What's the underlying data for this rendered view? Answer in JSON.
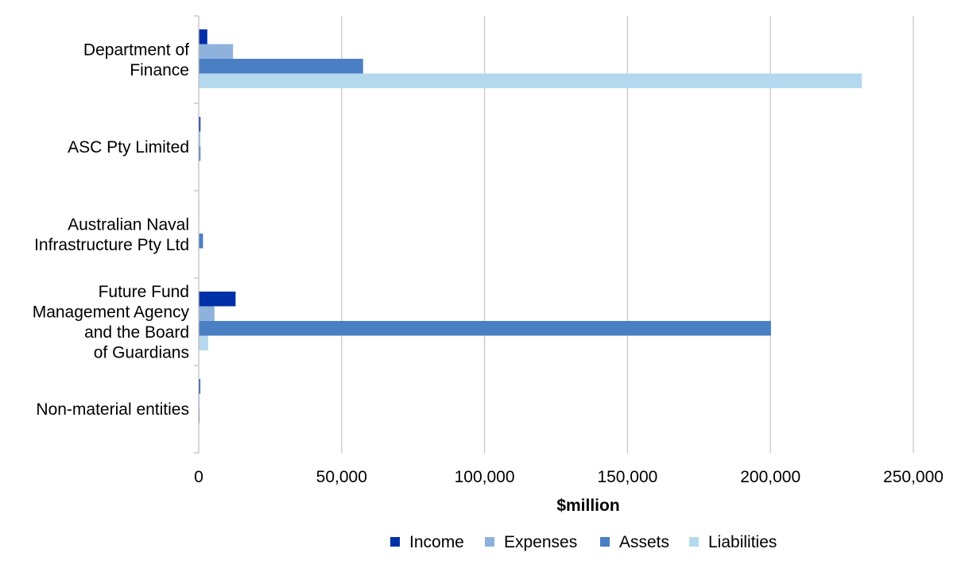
{
  "chart_data": {
    "type": "bar",
    "orientation": "horizontal",
    "title": "",
    "xlabel": "$million",
    "ylabel": "",
    "xlim": [
      0,
      250000
    ],
    "x_ticks": [
      0,
      50000,
      100000,
      150000,
      200000,
      250000
    ],
    "x_tick_labels": [
      "0",
      "50,000",
      "100,000",
      "150,000",
      "200,000",
      "250,000"
    ],
    "grid": "vertical",
    "legend_position": "bottom",
    "categories": [
      [
        "Department of",
        "Finance"
      ],
      [
        "ASC Pty Limited"
      ],
      [
        "Australian Naval",
        "Infrastructure Pty Ltd"
      ],
      [
        "Future Fund",
        "Management Agency",
        "and the Board",
        "of Guardians"
      ],
      [
        "Non-material entities"
      ]
    ],
    "series": [
      {
        "name": "Income",
        "color": "#0030A8",
        "values": [
          3000,
          600,
          150,
          12900,
          500
        ]
      },
      {
        "name": "Expenses",
        "color": "#8FB2DC",
        "values": [
          12000,
          500,
          100,
          5500,
          300
        ]
      },
      {
        "name": "Assets",
        "color": "#4A7FC4",
        "values": [
          57500,
          600,
          1500,
          200200,
          300
        ]
      },
      {
        "name": "Liabilities",
        "color": "#B4D9EE",
        "values": [
          232000,
          100,
          50,
          3300,
          100
        ]
      }
    ]
  }
}
